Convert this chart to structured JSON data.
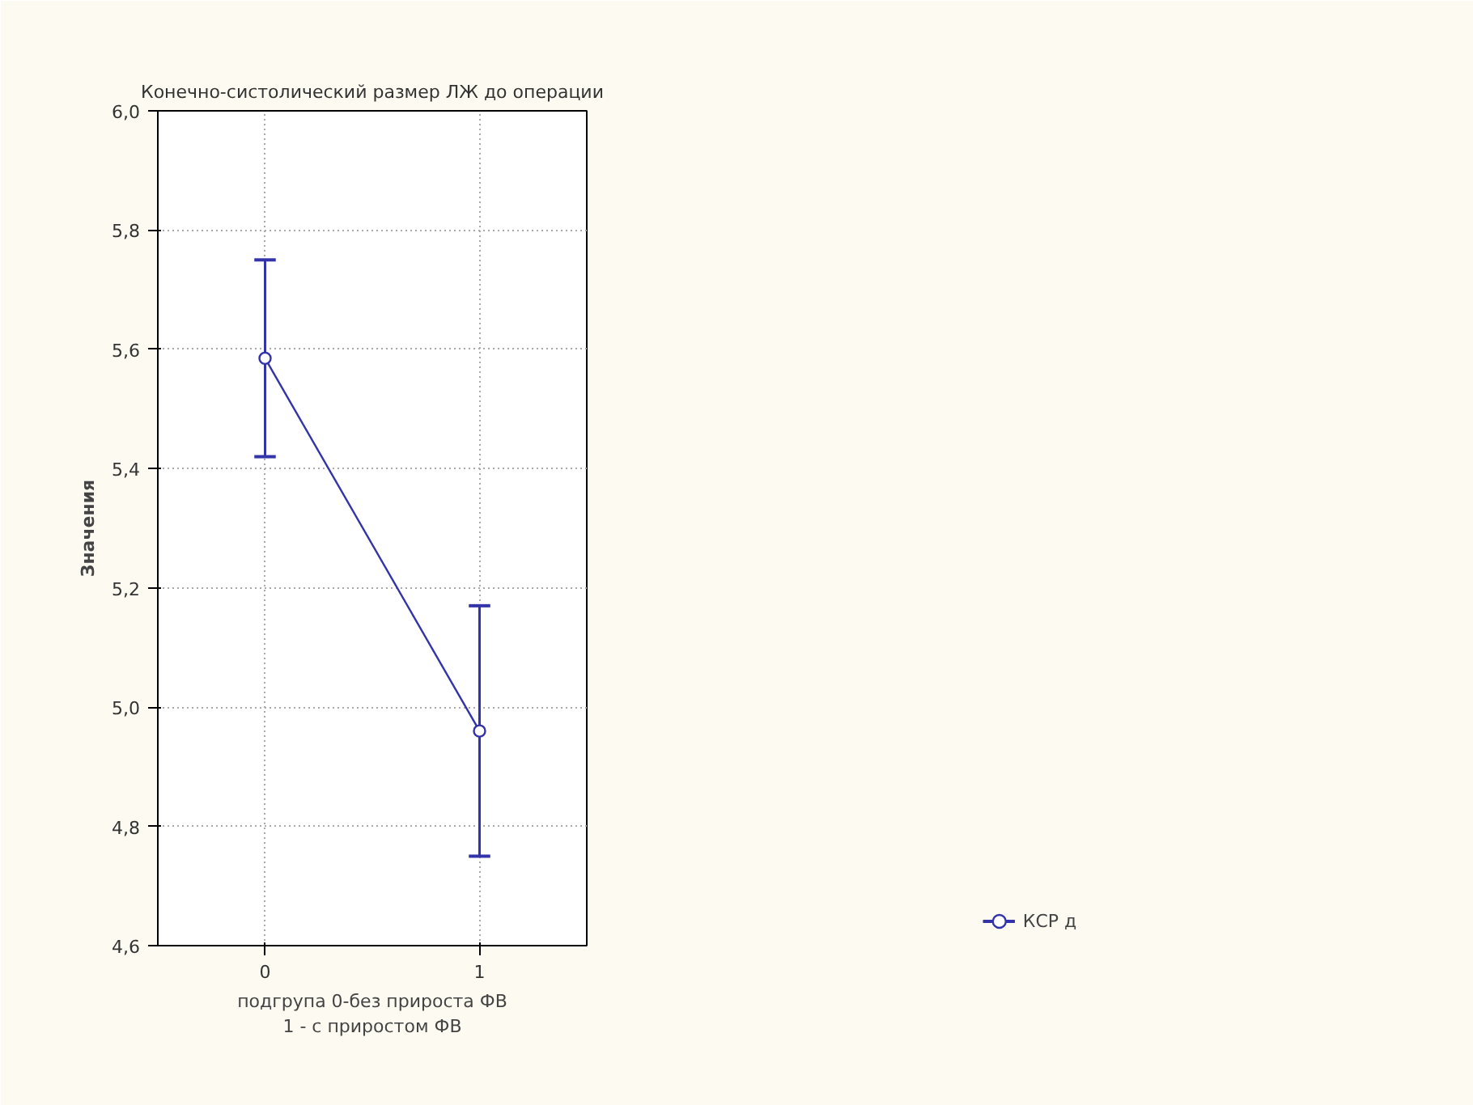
{
  "chart_data": {
    "type": "line",
    "title": "Конечно-систолический размер ЛЖ до операции",
    "xlabel": "подгрупа 0-без прироста ФВ\n1 - с приростом ФВ",
    "ylabel": "Значения",
    "x": [
      0,
      1
    ],
    "xlim": [
      -0.5,
      1.5
    ],
    "xticks": [
      0,
      1
    ],
    "ylim": [
      4.6,
      6.0
    ],
    "yticks": [
      {
        "value": 4.6,
        "label": "4,6"
      },
      {
        "value": 4.8,
        "label": "4,8"
      },
      {
        "value": 5.0,
        "label": "5,0"
      },
      {
        "value": 5.2,
        "label": "5,2"
      },
      {
        "value": 5.4,
        "label": "5,4"
      },
      {
        "value": 5.6,
        "label": "5,6"
      },
      {
        "value": 5.8,
        "label": "5,8"
      },
      {
        "value": 6.0,
        "label": "6,0"
      }
    ],
    "series": [
      {
        "name": "КСР д",
        "color": "#3333aa",
        "values": [
          5.585,
          4.96
        ],
        "errors": [
          [
            5.42,
            5.75
          ],
          [
            4.75,
            5.17
          ]
        ]
      }
    ],
    "grid": true,
    "legend": "bottom right",
    "marker": "circle",
    "line_style": "solid"
  }
}
